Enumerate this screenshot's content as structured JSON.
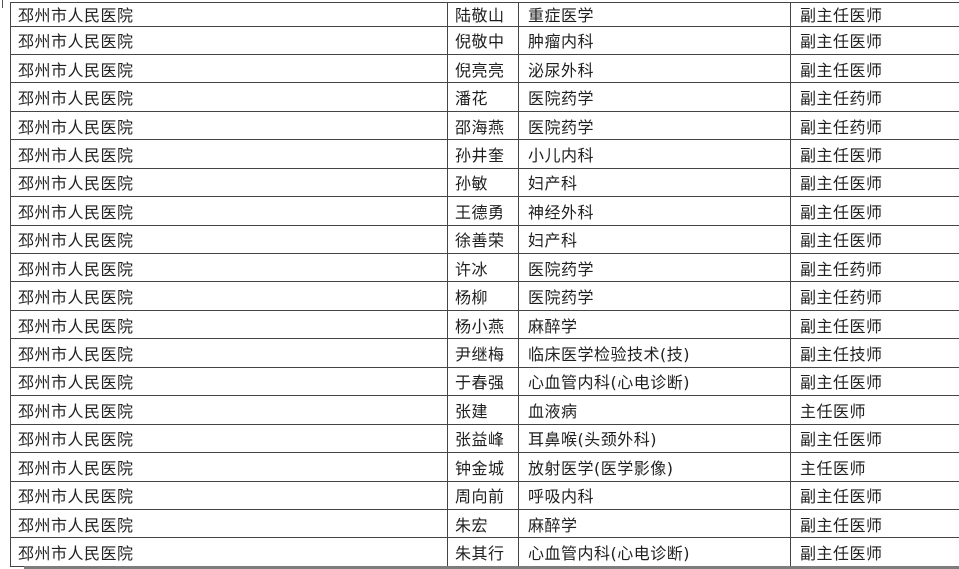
{
  "colors": {
    "grid_border": "#454545",
    "text": "#1f1f1f",
    "background": "#ffffff",
    "bottom_shadow": "#7d7d7d"
  },
  "table": {
    "columns": [
      "hospital",
      "name",
      "specialty",
      "title"
    ],
    "rows": [
      {
        "hospital": "邳州市人民医院",
        "name": "陆敬山",
        "specialty": "重症医学",
        "title": "副主任医师"
      },
      {
        "hospital": "邳州市人民医院",
        "name": "倪敬中",
        "specialty": "肿瘤内科",
        "title": "副主任医师"
      },
      {
        "hospital": "邳州市人民医院",
        "name": "倪亮亮",
        "specialty": "泌尿外科",
        "title": "副主任医师"
      },
      {
        "hospital": "邳州市人民医院",
        "name": "潘花",
        "specialty": "医院药学",
        "title": "副主任药师"
      },
      {
        "hospital": "邳州市人民医院",
        "name": "邵海燕",
        "specialty": "医院药学",
        "title": "副主任药师"
      },
      {
        "hospital": "邳州市人民医院",
        "name": "孙井奎",
        "specialty": "小儿内科",
        "title": "副主任医师"
      },
      {
        "hospital": "邳州市人民医院",
        "name": "孙敏",
        "specialty": "妇产科",
        "title": "副主任医师"
      },
      {
        "hospital": "邳州市人民医院",
        "name": "王德勇",
        "specialty": "神经外科",
        "title": "副主任医师"
      },
      {
        "hospital": "邳州市人民医院",
        "name": "徐善荣",
        "specialty": "妇产科",
        "title": "副主任医师"
      },
      {
        "hospital": "邳州市人民医院",
        "name": "许冰",
        "specialty": "医院药学",
        "title": "副主任药师"
      },
      {
        "hospital": "邳州市人民医院",
        "name": "杨柳",
        "specialty": "医院药学",
        "title": "副主任药师"
      },
      {
        "hospital": "邳州市人民医院",
        "name": "杨小燕",
        "specialty": "麻醉学",
        "title": "副主任医师"
      },
      {
        "hospital": "邳州市人民医院",
        "name": "尹继梅",
        "specialty": "临床医学检验技术(技)",
        "title": "副主任技师"
      },
      {
        "hospital": "邳州市人民医院",
        "name": "于春强",
        "specialty": "心血管内科(心电诊断)",
        "title": "副主任医师"
      },
      {
        "hospital": "邳州市人民医院",
        "name": "张建",
        "specialty": "血液病",
        "title": "主任医师"
      },
      {
        "hospital": "邳州市人民医院",
        "name": "张益峰",
        "specialty": "耳鼻喉(头颈外科)",
        "title": "副主任医师"
      },
      {
        "hospital": "邳州市人民医院",
        "name": "钟金城",
        "specialty": "放射医学(医学影像)",
        "title": "主任医师"
      },
      {
        "hospital": "邳州市人民医院",
        "name": "周向前",
        "specialty": "呼吸内科",
        "title": "副主任医师"
      },
      {
        "hospital": "邳州市人民医院",
        "name": "朱宏",
        "specialty": "麻醉学",
        "title": "副主任医师"
      },
      {
        "hospital": "邳州市人民医院",
        "name": "朱其行",
        "specialty": "心血管内科(心电诊断)",
        "title": "副主任医师"
      }
    ]
  }
}
